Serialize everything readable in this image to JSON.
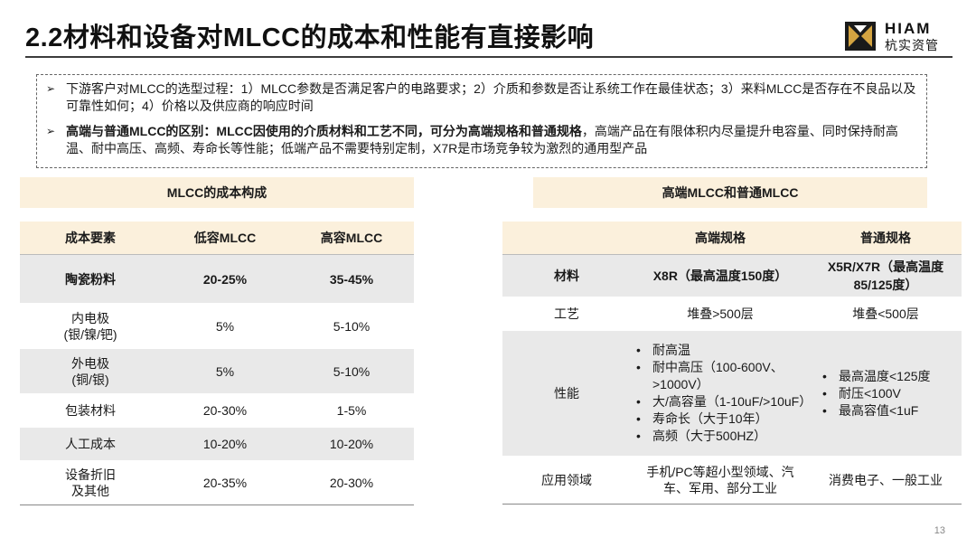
{
  "title": "2.2材料和设备对MLCC的成本和性能有直接影响",
  "logo": {
    "en": "HIAM",
    "cn": "杭实资管",
    "icon": "hiam-logo-icon"
  },
  "summary": {
    "bullet1": "下游客户对MLCC的选型过程：1）MLCC参数是否满足客户的电路要求；2）介质和参数是否让系统工作在最佳状态；3）来料MLCC是否存在不良品以及可靠性如何；4）价格以及供应商的响应时间",
    "bullet2_bold": "高端与普通MLCC的区别：MLCC因使用的介质材料和工艺不同，可分为高端规格和普通规格",
    "bullet2_rest": "，高端产品在有限体积内尽量提升电容量、同时保持耐高温、耐中高压、高频、寿命长等性能；低端产品不需要特别定制，X7R是市场竞争较为激烈的通用型产品"
  },
  "cost_panel": {
    "heading": "MLCC的成本构成",
    "headers": [
      "成本要素",
      "低容MLCC",
      "高容MLCC"
    ],
    "rows": [
      [
        "陶瓷粉料",
        "20-25%",
        "35-45%"
      ],
      [
        "内电极\n(银/镍/钯)",
        "5%",
        "5-10%"
      ],
      [
        "外电极\n(铜/银)",
        "5%",
        "5-10%"
      ],
      [
        "包装材料",
        "20-30%",
        "1-5%"
      ],
      [
        "人工成本",
        "10-20%",
        "10-20%"
      ],
      [
        "设备折旧\n及其他",
        "20-35%",
        "20-30%"
      ]
    ]
  },
  "spec_panel": {
    "heading": "高端MLCC和普通MLCC",
    "headers": [
      "",
      "高端规格",
      "普通规格"
    ],
    "material": {
      "label": "材料",
      "high": "X8R（最高温度150度）",
      "normal": "X5R/X7R（最高温度85/125度）"
    },
    "process": {
      "label": "工艺",
      "high": "堆叠>500层",
      "normal": "堆叠<500层"
    },
    "performance": {
      "label": "性能",
      "high": [
        "耐高温",
        "耐中高压（100-600V、>1000V）",
        "大/高容量（1-10uF/>10uF）",
        "寿命长（大于10年）",
        "高频（大于500HZ）"
      ],
      "normal": [
        "最高温度<125度",
        "耐压<100V",
        "最高容值<1uF"
      ]
    },
    "application": {
      "label": "应用领域",
      "high": "手机/PC等超小型领域、汽车、军用、部分工业",
      "normal": "消费电子、一般工业"
    }
  },
  "page_number": "13"
}
